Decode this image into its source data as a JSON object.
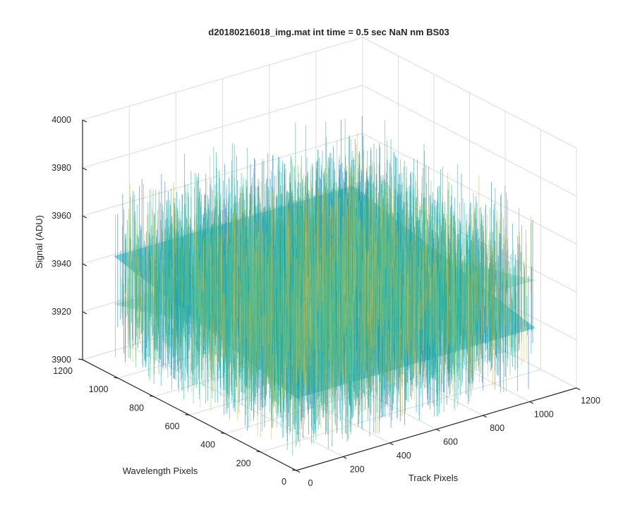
{
  "chart_data": {
    "type": "surface",
    "title": "d20180216018_img.mat int time = 0.5 sec  NaN nm BS03",
    "xlabel": "Track Pixels",
    "ylabel": "Wavelength Pixels",
    "zlabel": "Signal (ADU)",
    "xlim": [
      0,
      1200
    ],
    "ylim": [
      0,
      1200
    ],
    "zlim": [
      3900,
      4000
    ],
    "x_ticks": [
      "0",
      "200",
      "400",
      "600",
      "800",
      "1000",
      "1200"
    ],
    "y_ticks": [
      "0",
      "200",
      "400",
      "600",
      "800",
      "1000",
      "1200"
    ],
    "z_ticks": [
      "3900",
      "3920",
      "3940",
      "3960",
      "3980",
      "4000"
    ],
    "data_extent": {
      "x": [
        0,
        1024
      ],
      "y": [
        0,
        1024
      ]
    },
    "mean_signal": 3940,
    "noise_range": [
      3905,
      3985
    ],
    "grid": true,
    "colormap": "parula",
    "colors": {
      "dark": "#1a6fc2",
      "mid": "#15a7b4",
      "light": "#47b98f",
      "bright": "#c6bd52"
    }
  }
}
